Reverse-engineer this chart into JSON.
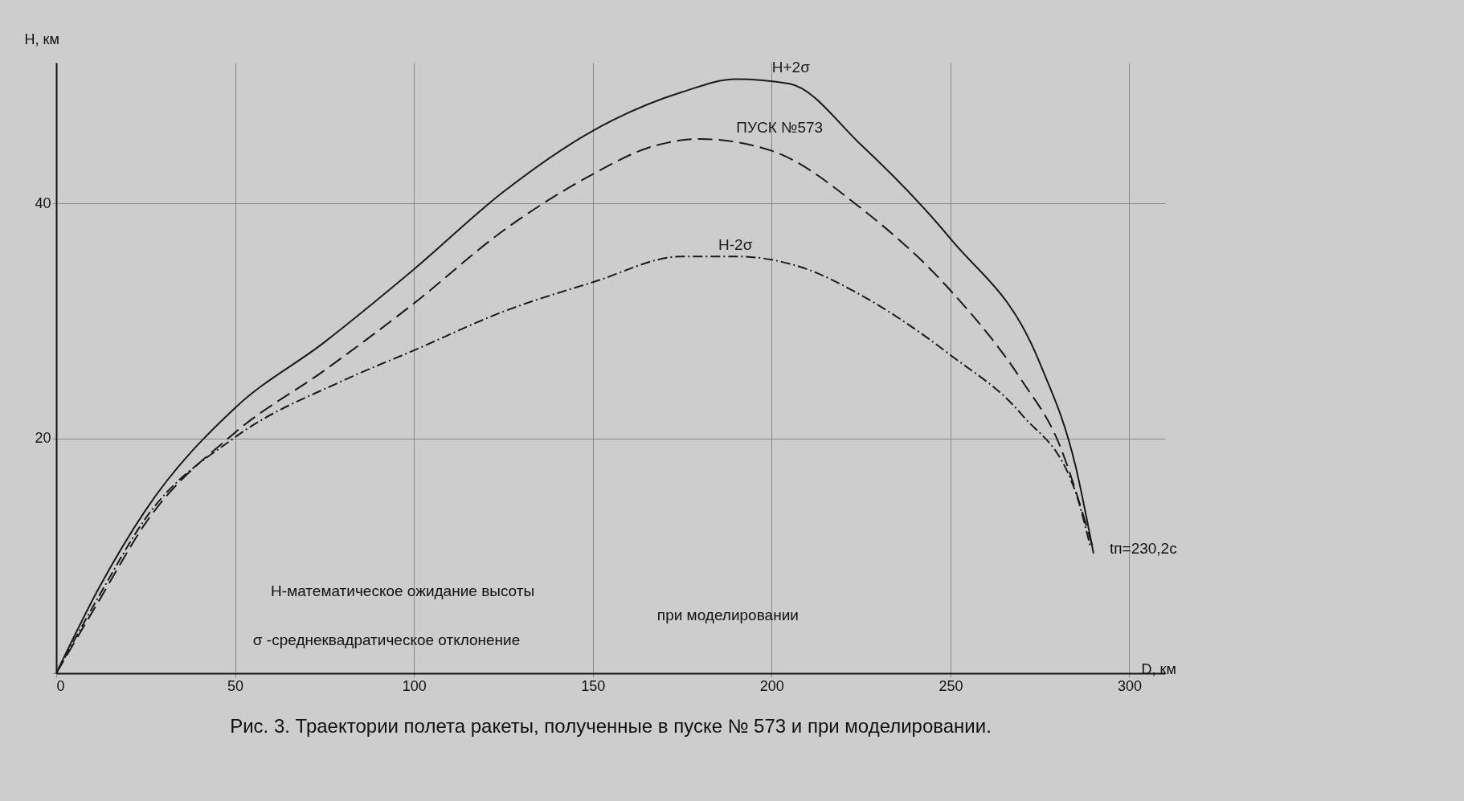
{
  "chart_data": {
    "type": "line",
    "title": "Рис. 3. Траектории полета ракеты, полученные в пуске № 573 и при моделировании.",
    "xlabel": "D, км",
    "ylabel": "H, км",
    "xlim": [
      0,
      310
    ],
    "ylim": [
      0,
      52
    ],
    "xticks": [
      0,
      50,
      100,
      150,
      200,
      250,
      300
    ],
    "yticks": [
      {
        "value": 0,
        "label": null
      },
      20,
      40
    ],
    "grid": true,
    "legend": false,
    "series": [
      {
        "name": "H+2σ",
        "color": "#1a1a1a",
        "line_style": "solid",
        "x": [
          0,
          12,
          25,
          50,
          75,
          100,
          125,
          150,
          175,
          190,
          205,
          225,
          250,
          275,
          285,
          290
        ],
        "values": [
          0,
          7.3,
          13.9,
          22.6,
          28.2,
          34.4,
          41.0,
          46.2,
          49.5,
          50.6,
          50.2,
          45.0,
          37.0,
          26.4,
          17.6,
          10.2
        ]
      },
      {
        "name": "ПУСК №573",
        "color": "#1a1a1a",
        "line_style": "dashed",
        "x": [
          0,
          12,
          25,
          50,
          75,
          100,
          125,
          150,
          165,
          180,
          200,
          225,
          250,
          270,
          280,
          290
        ],
        "values": [
          0,
          6.2,
          12.8,
          20.5,
          25.8,
          31.5,
          37.7,
          42.5,
          44.7,
          45.5,
          44.5,
          39.6,
          32.6,
          24.9,
          19.8,
          10.5
        ]
      },
      {
        "name": "H-2σ",
        "color": "#1a1a1a",
        "line_style": "dotted",
        "x": [
          0,
          12,
          25,
          50,
          80,
          100,
          125,
          150,
          175,
          190,
          210,
          225,
          250,
          270,
          285,
          289
        ],
        "values": [
          0,
          6.6,
          13.2,
          20.1,
          24.9,
          27.5,
          30.8,
          33.3,
          35.5,
          35.5,
          34.4,
          32.2,
          27.1,
          22.0,
          15.4,
          10.9
        ]
      }
    ],
    "annotations": [
      "H-математическое ожидание высоты",
      "σ -среднеквадратическое отклонение",
      "при моделировании",
      {
        "text": "tп=230,2с",
        "x": 290,
        "y": 10.5
      }
    ]
  }
}
